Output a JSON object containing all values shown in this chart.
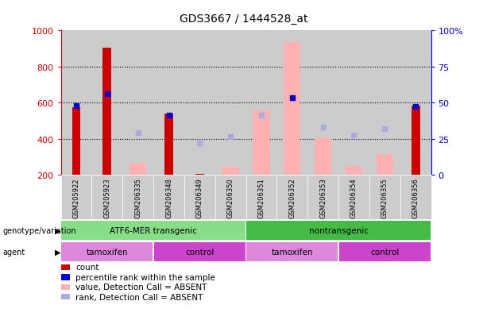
{
  "title": "GDS3667 / 1444528_at",
  "samples": [
    "GSM205922",
    "GSM205923",
    "GSM206335",
    "GSM206348",
    "GSM206349",
    "GSM206350",
    "GSM206351",
    "GSM206352",
    "GSM206353",
    "GSM206354",
    "GSM206355",
    "GSM206356"
  ],
  "count_values": [
    575,
    905,
    null,
    540,
    205,
    null,
    null,
    null,
    null,
    null,
    null,
    585
  ],
  "count_color": "#cc0000",
  "value_absent": [
    null,
    null,
    270,
    null,
    null,
    245,
    560,
    935,
    405,
    250,
    315,
    null
  ],
  "value_absent_color": "#ffb0b0",
  "rank_absent": [
    null,
    null,
    435,
    null,
    380,
    415,
    530,
    630,
    465,
    420,
    455,
    null
  ],
  "rank_absent_color": "#aaaadd",
  "percentile_present": [
    585,
    650,
    null,
    530,
    null,
    null,
    null,
    630,
    null,
    null,
    null,
    580
  ],
  "percentile_color": "#0000cc",
  "ylim_left": [
    200,
    1000
  ],
  "yticks_left": [
    200,
    400,
    600,
    800,
    1000
  ],
  "yticks_right": [
    0,
    25,
    50,
    75,
    100
  ],
  "ylabel_left_color": "#cc0000",
  "ylabel_right_color": "#0000cc",
  "bar_bg": "#cccccc",
  "genotype_groups": [
    {
      "label": "ATF6-MER transgenic",
      "start": 0,
      "end": 6,
      "color": "#88dd88"
    },
    {
      "label": "nontransgenic",
      "start": 6,
      "end": 12,
      "color": "#44bb44"
    }
  ],
  "agent_groups": [
    {
      "label": "tamoxifen",
      "start": 0,
      "end": 3,
      "color": "#dd88dd"
    },
    {
      "label": "control",
      "start": 3,
      "end": 6,
      "color": "#cc44cc"
    },
    {
      "label": "tamoxifen",
      "start": 6,
      "end": 9,
      "color": "#dd88dd"
    },
    {
      "label": "control",
      "start": 9,
      "end": 12,
      "color": "#cc44cc"
    }
  ],
  "legend_items": [
    {
      "label": "count",
      "color": "#cc0000"
    },
    {
      "label": "percentile rank within the sample",
      "color": "#0000cc"
    },
    {
      "label": "value, Detection Call = ABSENT",
      "color": "#ffb0b0"
    },
    {
      "label": "rank, Detection Call = ABSENT",
      "color": "#aaaadd"
    }
  ],
  "genotype_label": "genotype/variation",
  "agent_label": "agent"
}
